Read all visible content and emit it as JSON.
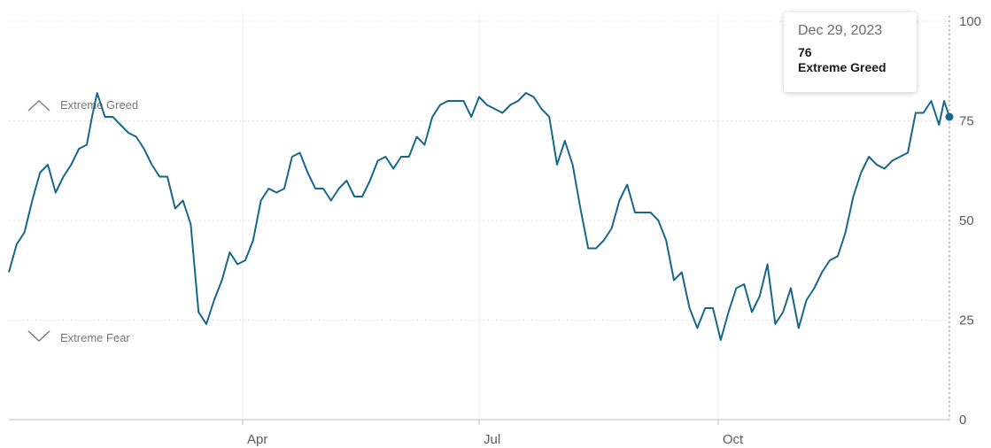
{
  "chart_data": {
    "type": "line",
    "y_ticks": [
      "0",
      "25",
      "50",
      "75",
      "100"
    ],
    "x_ticks": [
      "Apr",
      "Jul",
      "Oct"
    ],
    "ylim": [
      0,
      100
    ],
    "xlim": [
      "2023-01-01",
      "2023-12-29"
    ],
    "grid": "horizontal dotted at 25/50/75/100, vertical at month ticks",
    "line_color": "#16678a",
    "bands": [
      {
        "label": "Extreme Greed",
        "icon": "chevron-up-icon"
      },
      {
        "label": "Extreme Fear",
        "icon": "chevron-down-icon"
      }
    ],
    "series": [
      {
        "x": [
          "2023-01-01",
          "2023-01-04",
          "2023-01-07",
          "2023-01-10",
          "2023-01-13",
          "2023-01-16",
          "2023-01-19",
          "2023-01-22",
          "2023-01-25",
          "2023-01-28",
          "2023-01-31",
          "2023-02-02",
          "2023-02-04",
          "2023-02-07",
          "2023-02-10",
          "2023-02-13",
          "2023-02-16",
          "2023-02-19",
          "2023-02-22",
          "2023-02-25",
          "2023-02-28",
          "2023-03-03",
          "2023-03-06",
          "2023-03-09",
          "2023-03-12",
          "2023-03-15",
          "2023-03-18",
          "2023-03-21",
          "2023-03-24",
          "2023-03-27",
          "2023-03-30",
          "2023-04-02",
          "2023-04-05",
          "2023-04-08",
          "2023-04-11",
          "2023-04-14",
          "2023-04-17",
          "2023-04-20",
          "2023-04-23",
          "2023-04-26",
          "2023-04-29",
          "2023-05-02",
          "2023-05-05",
          "2023-05-08",
          "2023-05-11",
          "2023-05-14",
          "2023-05-17",
          "2023-05-20",
          "2023-05-23",
          "2023-05-26",
          "2023-05-29",
          "2023-06-01",
          "2023-06-04",
          "2023-06-07",
          "2023-06-10",
          "2023-06-13",
          "2023-06-16",
          "2023-06-19",
          "2023-06-22",
          "2023-06-25",
          "2023-06-28",
          "2023-07-01",
          "2023-07-04",
          "2023-07-07",
          "2023-07-10",
          "2023-07-13",
          "2023-07-16",
          "2023-07-19",
          "2023-07-22",
          "2023-07-25",
          "2023-07-28",
          "2023-07-31",
          "2023-08-03",
          "2023-08-06",
          "2023-08-09",
          "2023-08-12",
          "2023-08-15",
          "2023-08-18",
          "2023-08-21",
          "2023-08-24",
          "2023-08-27",
          "2023-08-30",
          "2023-09-02",
          "2023-09-05",
          "2023-09-08",
          "2023-09-11",
          "2023-09-14",
          "2023-09-17",
          "2023-09-20",
          "2023-09-23",
          "2023-09-26",
          "2023-09-29",
          "2023-10-02",
          "2023-10-05",
          "2023-10-08",
          "2023-10-11",
          "2023-10-14",
          "2023-10-17",
          "2023-10-20",
          "2023-10-23",
          "2023-10-26",
          "2023-10-29",
          "2023-11-01",
          "2023-11-04",
          "2023-11-07",
          "2023-11-10",
          "2023-11-13",
          "2023-11-16",
          "2023-11-19",
          "2023-11-22",
          "2023-11-25",
          "2023-11-28",
          "2023-12-01",
          "2023-12-04",
          "2023-12-07",
          "2023-12-10",
          "2023-12-13",
          "2023-12-16",
          "2023-12-19",
          "2023-12-22",
          "2023-12-25",
          "2023-12-27",
          "2023-12-29"
        ],
        "values": [
          37,
          44,
          47,
          55,
          62,
          64,
          57,
          61,
          64,
          68,
          69,
          76,
          82,
          76,
          76,
          74,
          72,
          71,
          68,
          64,
          61,
          61,
          53,
          55,
          49,
          27,
          24,
          30,
          35,
          42,
          39,
          40,
          45,
          55,
          58,
          57,
          58,
          66,
          67,
          62,
          58,
          58,
          55,
          58,
          60,
          56,
          56,
          60,
          65,
          66,
          63,
          66,
          66,
          71,
          69,
          76,
          79,
          80,
          80,
          80,
          76,
          81,
          79,
          78,
          77,
          79,
          80,
          82,
          81,
          78,
          76,
          64,
          70,
          64,
          53,
          43,
          43,
          45,
          48,
          55,
          59,
          52,
          52,
          52,
          50,
          45,
          35,
          37,
          28,
          23,
          28,
          28,
          20,
          27,
          33,
          34,
          27,
          31,
          39,
          24,
          27,
          33,
          23,
          30,
          33,
          37,
          40,
          41,
          47,
          56,
          62,
          66,
          64,
          63,
          65,
          66,
          67,
          77,
          77,
          80,
          74,
          80,
          76
        ]
      }
    ]
  },
  "tooltip": {
    "date": "Dec 29, 2023",
    "value": "76",
    "rating": "Extreme Greed"
  }
}
